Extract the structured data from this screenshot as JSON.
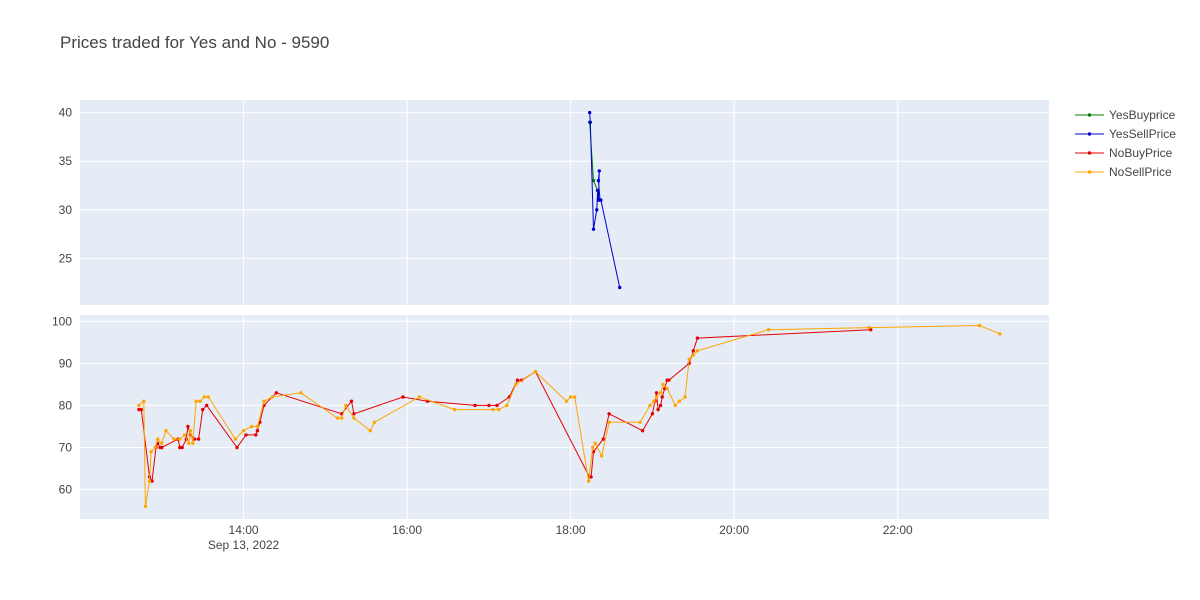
{
  "chart_data": {
    "type": "line",
    "title": "Prices traded for Yes and No - 9590",
    "x_axis": {
      "ticks": [
        "14:00",
        "16:00",
        "18:00",
        "20:00",
        "22:00"
      ],
      "tick_values": [
        14,
        16,
        18,
        20,
        22
      ],
      "date_label": "Sep 13, 2022",
      "range": [
        12.0,
        23.85
      ]
    },
    "legend": [
      {
        "name": "YesBuyprice",
        "color": "#008000"
      },
      {
        "name": "YesSellPrice",
        "color": "#0000cd"
      },
      {
        "name": "NoBuyPrice",
        "color": "#e60000"
      },
      {
        "name": "NoSellPrice",
        "color": "#ffa500"
      }
    ],
    "legend_position": "top-right",
    "subplots": [
      {
        "name": "yes",
        "ylim": [
          20.2,
          41.3
        ],
        "yticks": [
          25,
          30,
          35,
          40
        ],
        "series": [
          {
            "name": "YesBuyprice",
            "color": "#008000",
            "x": [
              18.233,
              18.28,
              18.33,
              18.35
            ],
            "y": [
              39,
              33,
              32,
              31
            ]
          },
          {
            "name": "YesSellPrice",
            "color": "#0000cd",
            "x": [
              18.233,
              18.24,
              18.28,
              18.32,
              18.33,
              18.34,
              18.35,
              18.34,
              18.36,
              18.37,
              18.6
            ],
            "y": [
              40,
              39,
              28,
              30,
              32,
              31,
              34,
              33,
              31,
              31,
              22
            ]
          }
        ]
      },
      {
        "name": "no",
        "ylim": [
          53.0,
          101.5
        ],
        "yticks": [
          60,
          70,
          80,
          90,
          100
        ],
        "series": [
          {
            "name": "NoBuyPrice",
            "color": "#e60000",
            "x": [
              12.72,
              12.75,
              12.85,
              12.88,
              12.93,
              12.95,
              12.98,
              13.0,
              13.2,
              13.22,
              13.25,
              13.3,
              13.32,
              13.35,
              13.4,
              13.45,
              13.5,
              13.55,
              13.92,
              14.03,
              14.15,
              14.17,
              14.2,
              14.25,
              14.4,
              15.2,
              15.32,
              15.35,
              15.95,
              16.25,
              16.83,
              17.0,
              17.1,
              17.25,
              17.35,
              17.4,
              17.57,
              18.23,
              18.25,
              18.28,
              18.4,
              18.47,
              18.88,
              19.0,
              19.03,
              19.05,
              19.07,
              19.1,
              19.12,
              19.15,
              19.18,
              19.2,
              19.45,
              19.5,
              19.55,
              21.67
            ],
            "y": [
              79,
              79,
              63,
              62,
              70,
              71,
              70,
              70,
              72,
              70,
              70,
              72,
              75,
              73,
              72,
              72,
              79,
              80,
              70,
              73,
              73,
              74,
              76,
              80,
              83,
              78,
              81,
              78,
              82,
              81,
              80,
              80,
              80,
              82,
              86,
              86,
              88,
              63,
              63,
              69,
              72,
              78,
              74,
              78,
              81,
              83,
              79,
              80,
              82,
              84,
              86,
              86,
              90,
              93,
              96,
              98
            ]
          },
          {
            "name": "NoSellPrice",
            "color": "#ffa500",
            "x": [
              12.72,
              12.78,
              12.8,
              12.85,
              12.87,
              12.92,
              12.95,
              13.0,
              13.05,
              13.15,
              13.22,
              13.28,
              13.33,
              13.35,
              13.38,
              13.42,
              13.47,
              13.52,
              13.57,
              13.9,
              14.0,
              14.1,
              14.17,
              14.25,
              14.35,
              14.7,
              15.15,
              15.2,
              15.25,
              15.35,
              15.55,
              15.6,
              16.15,
              16.58,
              17.05,
              17.12,
              17.22,
              17.33,
              17.57,
              17.95,
              18.0,
              18.05,
              18.22,
              18.27,
              18.3,
              18.38,
              18.47,
              18.85,
              18.97,
              19.02,
              19.05,
              19.1,
              19.13,
              19.18,
              19.28,
              19.33,
              19.4,
              19.45,
              19.5,
              19.55,
              20.42,
              21.65,
              23.0,
              23.25
            ],
            "y": [
              80,
              81,
              56,
              62,
              69,
              70,
              72,
              71,
              74,
              72,
              72,
              73,
              71,
              74,
              71,
              81,
              81,
              82,
              82,
              72,
              74,
              75,
              75,
              81,
              82,
              83,
              77,
              77,
              80,
              77,
              74,
              76,
              82,
              79,
              79,
              79,
              80,
              85,
              88,
              81,
              82,
              82,
              62,
              70,
              71,
              68,
              76,
              76,
              80,
              81,
              82,
              83,
              85,
              84,
              80,
              81,
              82,
              91,
              92,
              93,
              98,
              98.5,
              99,
              97
            ]
          }
        ]
      }
    ]
  }
}
